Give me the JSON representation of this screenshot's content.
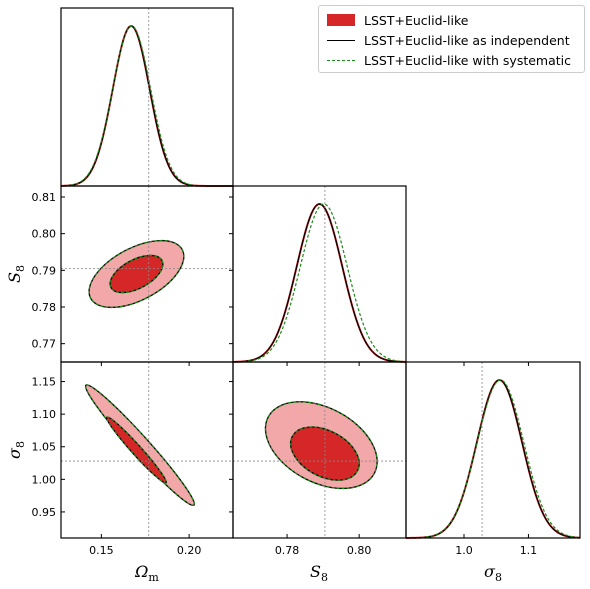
{
  "legend": {
    "items": [
      {
        "label": "LSST+Euclid-like",
        "style": "fill",
        "color": "#d62728",
        "light_color": "#f2a8a8"
      },
      {
        "label": "LSST+Euclid-like as independent",
        "style": "solid",
        "color": "#000000"
      },
      {
        "label": "LSST+Euclid-like with systematic",
        "style": "dashed",
        "color": "#1a8a1a"
      }
    ],
    "placement": "top-right"
  },
  "chart_data": [
    {
      "type": "line",
      "panel": "Omega_m marginal",
      "xlabel": "",
      "ylabel": "",
      "xlim": [
        0.127,
        0.225
      ],
      "peak": 0.167,
      "sigma": 0.0105,
      "fiducial": 0.177,
      "series": [
        "LSST+Euclid-like",
        "LSST+Euclid-like as independent",
        "LSST+Euclid-like with systematic"
      ]
    },
    {
      "type": "contour",
      "panel": "S_8 vs Omega_m",
      "xlabel": "",
      "ylabel": "S_8",
      "xlim": [
        0.127,
        0.225
      ],
      "ylim": [
        0.765,
        0.813
      ],
      "ytick_labels": [
        "0.77",
        "0.78",
        "0.79",
        "0.80",
        "0.81"
      ],
      "yticks": [
        0.77,
        0.78,
        0.79,
        0.8,
        0.81
      ],
      "center": [
        0.17,
        0.789
      ],
      "contour_68": {
        "x_range": [
          0.155,
          0.185
        ],
        "y_range": [
          0.78,
          0.798
        ]
      },
      "contour_95": {
        "x_range": [
          0.143,
          0.197
        ],
        "y_range": [
          0.774,
          0.804
        ]
      },
      "fiducial": [
        0.177,
        0.7905
      ]
    },
    {
      "type": "contour",
      "panel": "sigma_8 vs Omega_m",
      "xlabel": "Ω_m",
      "ylabel": "σ_8",
      "xlim": [
        0.127,
        0.225
      ],
      "ylim": [
        0.91,
        1.18
      ],
      "xtick_labels": [
        "0.15",
        "0.20"
      ],
      "xticks": [
        0.15,
        0.2
      ],
      "ytick_labels": [
        "0.95",
        "1.00",
        "1.05",
        "1.10",
        "1.15"
      ],
      "yticks": [
        0.95,
        1.0,
        1.05,
        1.1,
        1.15
      ],
      "contour_68": {
        "x_range": [
          0.153,
          0.187
        ],
        "y_range": [
          0.995,
          1.095
        ]
      },
      "contour_95": {
        "x_range": [
          0.141,
          0.203
        ],
        "y_range": [
          0.965,
          1.14
        ]
      },
      "fiducial": [
        0.177,
        1.028
      ]
    },
    {
      "type": "line",
      "panel": "S_8 marginal",
      "xlabel": "",
      "ylabel": "",
      "xlim": [
        0.765,
        0.813
      ],
      "peak": 0.789,
      "sigma": 0.0063,
      "fiducial": 0.7905,
      "series": [
        "LSST+Euclid-like",
        "LSST+Euclid-like as independent",
        "LSST+Euclid-like with systematic"
      ]
    },
    {
      "type": "contour",
      "panel": "sigma_8 vs S_8",
      "xlabel": "S_8",
      "ylabel": "",
      "xlim": [
        0.765,
        0.813
      ],
      "ylim": [
        0.91,
        1.18
      ],
      "xtick_labels": [
        "0.78",
        "0.80"
      ],
      "xticks": [
        0.78,
        0.8
      ],
      "contour_68": {
        "x_range": [
          0.781,
          0.8
        ],
        "y_range": [
          0.997,
          1.082
        ]
      },
      "contour_95": {
        "x_range": [
          0.774,
          0.805
        ],
        "y_range": [
          0.965,
          1.14
        ]
      },
      "fiducial": [
        0.7905,
        1.028
      ]
    },
    {
      "type": "line",
      "panel": "sigma_8 marginal",
      "xlabel": "σ_8",
      "ylabel": "",
      "xlim": [
        0.91,
        1.18
      ],
      "xtick_labels": [
        "1.0",
        "1.1"
      ],
      "xticks": [
        1.0,
        1.1
      ],
      "peak": 1.055,
      "sigma": 0.035,
      "fiducial": 1.028,
      "series": [
        "LSST+Euclid-like",
        "LSST+Euclid-like as independent",
        "LSST+Euclid-like with systematic"
      ]
    }
  ]
}
